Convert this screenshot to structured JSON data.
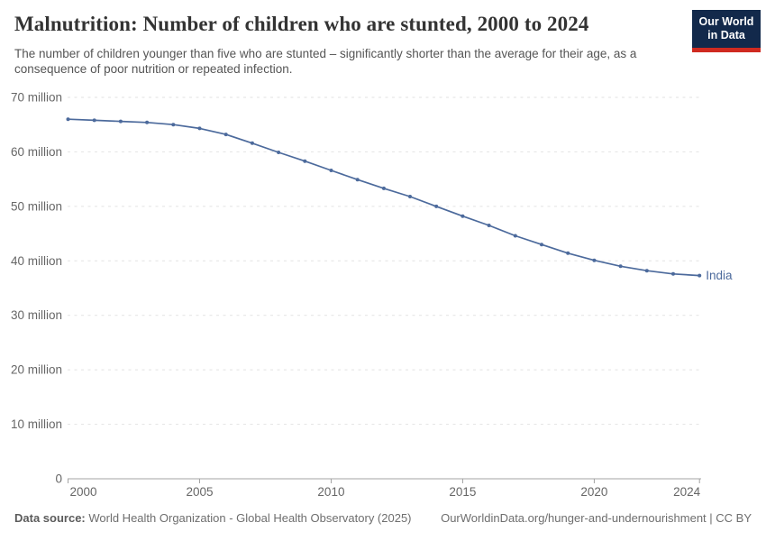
{
  "header": {
    "title": "Malnutrition: Number of children who are stunted, 2000 to 2024",
    "subtitle": "The number of children younger than five who are stunted – significantly shorter than the average for their age, as a consequence of poor nutrition or repeated infection.",
    "logo": {
      "line1": "Our World",
      "line2": "in Data"
    }
  },
  "footer": {
    "datasource_label": "Data source:",
    "datasource_value": " World Health Organization - Global Health Observatory (2025)",
    "link": "OurWorldinData.org/hunger-and-undernourishment | CC BY"
  },
  "colors": {
    "line": "#4c6a9c",
    "series_label": "#4c6a9c",
    "axis_text": "#666666",
    "gridline": "#e2e2e2",
    "axis_line": "#a3a3a3",
    "title": "#333333",
    "subtitle": "#555555",
    "footer_text": "#6e6e6e",
    "logo_bg": "#12294b",
    "logo_accent": "#cf2a20"
  },
  "chart_data": {
    "type": "line",
    "title": "Malnutrition: Number of children who are stunted, 2000 to 2024",
    "xlabel": "",
    "ylabel": "",
    "unit": "million",
    "grid": "horizontal-dashed",
    "legend": "series-end-label",
    "xlim": [
      2000,
      2024
    ],
    "ylim": [
      0,
      70
    ],
    "x": [
      2000,
      2001,
      2002,
      2003,
      2004,
      2005,
      2006,
      2007,
      2008,
      2009,
      2010,
      2011,
      2012,
      2013,
      2014,
      2015,
      2016,
      2017,
      2018,
      2019,
      2020,
      2021,
      2022,
      2023,
      2024
    ],
    "series": [
      {
        "name": "India",
        "color": "#4c6a9c",
        "values": [
          66.0,
          65.8,
          65.6,
          65.4,
          65.0,
          64.3,
          63.2,
          61.6,
          59.9,
          58.3,
          56.6,
          54.9,
          53.3,
          51.8,
          50.0,
          48.2,
          46.5,
          44.6,
          43.0,
          41.4,
          40.1,
          39.0,
          38.2,
          37.6,
          37.3
        ]
      }
    ],
    "yticks": [
      {
        "value": 0,
        "label": "0"
      },
      {
        "value": 10,
        "label": "10 million"
      },
      {
        "value": 20,
        "label": "20 million"
      },
      {
        "value": 30,
        "label": "30 million"
      },
      {
        "value": 40,
        "label": "40 million"
      },
      {
        "value": 50,
        "label": "50 million"
      },
      {
        "value": 60,
        "label": "60 million"
      },
      {
        "value": 70,
        "label": "70 million"
      }
    ],
    "xticks": [
      {
        "value": 2000,
        "label": "2000"
      },
      {
        "value": 2005,
        "label": "2005"
      },
      {
        "value": 2010,
        "label": "2010"
      },
      {
        "value": 2015,
        "label": "2015"
      },
      {
        "value": 2020,
        "label": "2020"
      },
      {
        "value": 2024,
        "label": "2024"
      }
    ]
  }
}
